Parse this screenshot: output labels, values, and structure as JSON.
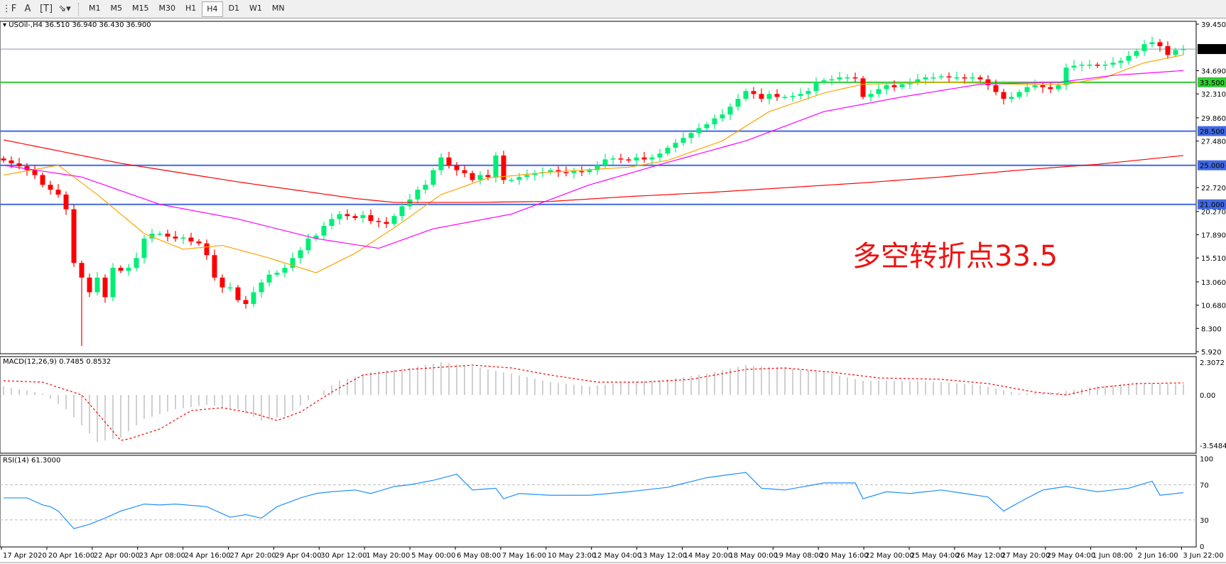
{
  "toolbar": {
    "icons": [
      "period-separator-icon",
      "text-a-icon",
      "text-label-icon",
      "arrows-icon"
    ],
    "timeframes": [
      "M1",
      "M5",
      "M15",
      "M30",
      "H1",
      "H4",
      "D1",
      "W1",
      "MN"
    ],
    "active_timeframe": "H4"
  },
  "header": {
    "symbol_line": "USOil-,H4  36.510 36.940 36.430 36.900"
  },
  "annotation": "多空转折点33.5",
  "colors": {
    "bull": "#00ee76",
    "bear": "#ff0000",
    "ma_fast": "#ffa500",
    "ma_mid": "#ff00ff",
    "ma_slow": "#ff0000",
    "level_green": "#33cc33",
    "level_blue": "#4169e1",
    "rsi": "#1e90ff",
    "macd_hist": "#c0c0c0",
    "macd_signal": "#ff0000"
  },
  "chart_data": [
    {
      "type": "candlestick",
      "symbol": "USOil-",
      "timeframe": "H4",
      "ohlc_last": {
        "open": 36.51,
        "high": 36.94,
        "low": 36.43,
        "close": 36.9
      },
      "y_ticks": [
        "39.450",
        "34.690",
        "32.310",
        "29.860",
        "27.480",
        "22.720",
        "20.270",
        "17.890",
        "15.510",
        "13.060",
        "10.680",
        "8.300",
        "5.920"
      ],
      "ylim": [
        5.92,
        39.45
      ],
      "current_price": {
        "label": "36.900",
        "value": 36.9
      },
      "levels": [
        {
          "label": "33.500",
          "value": 33.5,
          "color": "#33cc33"
        },
        {
          "label": "28.500",
          "value": 28.5,
          "color": "#4169e1"
        },
        {
          "label": "25.000",
          "value": 25.0,
          "color": "#4169e1"
        },
        {
          "label": "21.000",
          "value": 21.0,
          "color": "#4169e1"
        }
      ],
      "closes": [
        25.5,
        25.2,
        24.9,
        24.5,
        24,
        23,
        22.5,
        22,
        20.5,
        15,
        13.5,
        12,
        13.5,
        11.5,
        14.5,
        14.2,
        14.5,
        15.5,
        17.5,
        18,
        18,
        17.7,
        17.5,
        17.6,
        17.2,
        17,
        15.8,
        13.5,
        12.5,
        12.5,
        11.2,
        10.8,
        12,
        13,
        13.8,
        14,
        14.5,
        15.5,
        16.3,
        17.5,
        17.8,
        18.8,
        19.5,
        20,
        19.8,
        19.6,
        19.9,
        19.3,
        19.2,
        19,
        19.8,
        20.8,
        21.5,
        22.5,
        23,
        24.5,
        25.8,
        25,
        24.5,
        24.2,
        23.5,
        24,
        23.8,
        26,
        23.5,
        23.5,
        23.8,
        24,
        24.2,
        24.3,
        24.5,
        24.3,
        24.2,
        24.4,
        24.3,
        24.5,
        25,
        25.6,
        25.7,
        25.6,
        25.5,
        25.8,
        25.6,
        25.8,
        26.2,
        26.8,
        27.3,
        27.8,
        28.3,
        28.8,
        29.2,
        29.8,
        30.2,
        31,
        31.8,
        32.6,
        32.3,
        31.8,
        32.3,
        32,
        32,
        32.1,
        32.3,
        32.6,
        33.5,
        33.7,
        33.8,
        34,
        34,
        33.9,
        32,
        32.3,
        32.8,
        33.2,
        33,
        33.3,
        33.5,
        33.8,
        34,
        34,
        34.1,
        34,
        34,
        33.9,
        34,
        33.8,
        33.2,
        32.5,
        31.8,
        32,
        32.5,
        33,
        33.2,
        33,
        32.8,
        33.2,
        35,
        35.2,
        35.3,
        35.3,
        35.2,
        35.3,
        35.5,
        35.7,
        36.2,
        36.7,
        37.4,
        37.6,
        37.2,
        36.3,
        36.8,
        36.9
      ],
      "notable_low": {
        "bar": 10,
        "value": 6.5
      },
      "moving_averages": [
        {
          "role": "fast",
          "color": "#ffa500",
          "points": [
            [
              0,
              24
            ],
            [
              7,
              25
            ],
            [
              12,
              22
            ],
            [
              18,
              18
            ],
            [
              23,
              16.4
            ],
            [
              28,
              16.8
            ],
            [
              34,
              15.5
            ],
            [
              40,
              14
            ],
            [
              45,
              16
            ],
            [
              50,
              18.6
            ],
            [
              56,
              22
            ],
            [
              62,
              23.7
            ],
            [
              70,
              24.3
            ],
            [
              80,
              24.8
            ],
            [
              85,
              25.5
            ],
            [
              92,
              27.5
            ],
            [
              98,
              30.5
            ],
            [
              105,
              32.4
            ],
            [
              110,
              33.3
            ],
            [
              120,
              33.5
            ],
            [
              130,
              33.3
            ],
            [
              136,
              33.3
            ],
            [
              141,
              34
            ],
            [
              146,
              35.5
            ],
            [
              151,
              36.3
            ]
          ]
        },
        {
          "role": "mid",
          "color": "#ff00ff",
          "points": [
            [
              0,
              25
            ],
            [
              10,
              23.8
            ],
            [
              20,
              21
            ],
            [
              30,
              19.5
            ],
            [
              40,
              17.5
            ],
            [
              48,
              16.5
            ],
            [
              55,
              18.5
            ],
            [
              65,
              20
            ],
            [
              75,
              23
            ],
            [
              85,
              25.3
            ],
            [
              95,
              27.5
            ],
            [
              105,
              30.5
            ],
            [
              115,
              32
            ],
            [
              125,
              33.3
            ],
            [
              135,
              33.5
            ],
            [
              142,
              34.2
            ],
            [
              151,
              34.7
            ]
          ]
        },
        {
          "role": "slow",
          "color": "#ff0000",
          "points": [
            [
              0,
              27.6
            ],
            [
              15,
              25.2
            ],
            [
              30,
              23.3
            ],
            [
              45,
              21.6
            ],
            [
              50,
              21.2
            ],
            [
              60,
              21.2
            ],
            [
              70,
              21.3
            ],
            [
              80,
              21.8
            ],
            [
              90,
              22.2
            ],
            [
              100,
              22.7
            ],
            [
              110,
              23.2
            ],
            [
              120,
              23.8
            ],
            [
              130,
              24.5
            ],
            [
              140,
              25.1
            ],
            [
              151,
              26.0
            ]
          ]
        }
      ],
      "x_ticks": [
        "17 Apr 2020",
        "20 Apr 16:00",
        "22 Apr 00:00",
        "23 Apr 08:00",
        "24 Apr 16:00",
        "27 Apr 20:00",
        "29 Apr 04:00",
        "30 Apr 12:00",
        "1 May 20:00",
        "5 May 00:00",
        "6 May 08:00",
        "7 May 16:00",
        "10 May 23:00",
        "12 May 04:00",
        "13 May 12:00",
        "14 May 20:00",
        "18 May 00:00",
        "19 May 08:00",
        "20 May 16:00",
        "22 May 00:00",
        "25 May 04:00",
        "26 May 12:00",
        "27 May 20:00",
        "29 May 04:00",
        "1 Jun 08:00",
        "2 Jun 16:00",
        "3 Jun 22:00"
      ]
    },
    {
      "type": "bar+line",
      "label": "MACD(12,26,9) 0.7485 0.8532",
      "y_ticks": [
        "2.3072",
        "0.00",
        "-3.5484"
      ],
      "ylim": [
        -3.5484,
        2.3072
      ],
      "histogram": [
        [
          0,
          0.6
        ],
        [
          5,
          0.1
        ],
        [
          8,
          -1
        ],
        [
          12,
          -3.3
        ],
        [
          15,
          -3
        ],
        [
          18,
          -1.7
        ],
        [
          22,
          -1
        ],
        [
          26,
          -0.7
        ],
        [
          30,
          -1
        ],
        [
          33,
          -1.8
        ],
        [
          36,
          -1.5
        ],
        [
          40,
          0
        ],
        [
          43,
          1
        ],
        [
          47,
          1.6
        ],
        [
          52,
          1.9
        ],
        [
          56,
          2.3
        ],
        [
          60,
          2
        ],
        [
          65,
          1.5
        ],
        [
          70,
          0.9
        ],
        [
          75,
          0.6
        ],
        [
          80,
          0.9
        ],
        [
          85,
          1.1
        ],
        [
          90,
          1.5
        ],
        [
          95,
          2.1
        ],
        [
          100,
          1.9
        ],
        [
          105,
          1.6
        ],
        [
          110,
          1.0
        ],
        [
          115,
          1.0
        ],
        [
          120,
          0.9
        ],
        [
          125,
          0.7
        ],
        [
          130,
          0.1
        ],
        [
          135,
          0.2
        ],
        [
          140,
          0.6
        ],
        [
          145,
          0.85
        ],
        [
          151,
          0.75
        ]
      ],
      "signal": [
        [
          0,
          1.0
        ],
        [
          5,
          0.9
        ],
        [
          10,
          0
        ],
        [
          15,
          -3.2
        ],
        [
          16,
          -3.1
        ],
        [
          20,
          -2.4
        ],
        [
          24,
          -1.1
        ],
        [
          28,
          -0.9
        ],
        [
          32,
          -1.3
        ],
        [
          35,
          -1.8
        ],
        [
          38,
          -1.2
        ],
        [
          42,
          0.2
        ],
        [
          46,
          1.4
        ],
        [
          52,
          1.8
        ],
        [
          60,
          2.1
        ],
        [
          65,
          1.9
        ],
        [
          70,
          1.4
        ],
        [
          76,
          0.9
        ],
        [
          82,
          0.9
        ],
        [
          88,
          1.1
        ],
        [
          95,
          1.8
        ],
        [
          100,
          1.9
        ],
        [
          106,
          1.6
        ],
        [
          112,
          1.2
        ],
        [
          120,
          1.1
        ],
        [
          126,
          0.8
        ],
        [
          132,
          0.2
        ],
        [
          136,
          0.0
        ],
        [
          140,
          0.5
        ],
        [
          145,
          0.8
        ],
        [
          151,
          0.85
        ]
      ]
    },
    {
      "type": "line",
      "label": "RSI(14) 61.3000",
      "y_ticks": [
        "100",
        "70",
        "30",
        "0"
      ],
      "ylim": [
        0,
        100
      ],
      "levels": [
        70,
        30
      ],
      "values": [
        [
          0,
          55
        ],
        [
          3,
          55
        ],
        [
          5,
          47
        ],
        [
          6,
          45
        ],
        [
          7,
          40
        ],
        [
          9,
          20
        ],
        [
          11,
          25
        ],
        [
          13,
          32
        ],
        [
          15,
          40
        ],
        [
          18,
          48
        ],
        [
          20,
          47
        ],
        [
          22,
          48
        ],
        [
          26,
          45
        ],
        [
          29,
          33
        ],
        [
          31,
          36
        ],
        [
          33,
          32
        ],
        [
          35,
          45
        ],
        [
          38,
          55
        ],
        [
          40,
          60
        ],
        [
          42,
          62
        ],
        [
          45,
          64
        ],
        [
          47,
          60
        ],
        [
          50,
          68
        ],
        [
          52,
          70
        ],
        [
          55,
          75
        ],
        [
          58,
          82
        ],
        [
          60,
          64
        ],
        [
          63,
          66
        ],
        [
          64,
          54
        ],
        [
          66,
          60
        ],
        [
          70,
          58
        ],
        [
          75,
          58
        ],
        [
          80,
          62
        ],
        [
          85,
          67
        ],
        [
          90,
          78
        ],
        [
          95,
          84
        ],
        [
          97,
          66
        ],
        [
          100,
          64
        ],
        [
          105,
          72
        ],
        [
          109,
          72
        ],
        [
          110,
          54
        ],
        [
          113,
          62
        ],
        [
          116,
          60
        ],
        [
          120,
          64
        ],
        [
          123,
          60
        ],
        [
          126,
          56
        ],
        [
          128,
          40
        ],
        [
          130,
          50
        ],
        [
          133,
          64
        ],
        [
          136,
          68
        ],
        [
          140,
          62
        ],
        [
          144,
          66
        ],
        [
          147,
          74
        ],
        [
          148,
          58
        ],
        [
          151,
          61
        ]
      ]
    }
  ]
}
